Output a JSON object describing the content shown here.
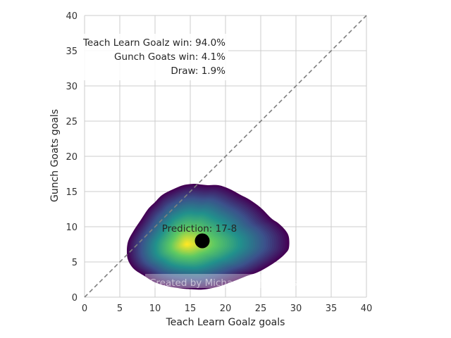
{
  "chart_data": {
    "type": "heatmap",
    "title": "",
    "xlabel": "Teach Learn Goalz goals",
    "ylabel": "Gunch Goats goals",
    "xlim": [
      0,
      40
    ],
    "ylim": [
      0,
      40
    ],
    "xticks": [
      0,
      5,
      10,
      15,
      20,
      25,
      30,
      35,
      40
    ],
    "yticks": [
      0,
      5,
      10,
      15,
      20,
      25,
      30,
      35,
      40
    ],
    "grid": true,
    "colormap": "viridis",
    "colors": {
      "grid": "#cccccc",
      "diagonal": "#7f7f7f",
      "point": "#000000",
      "viridis": [
        "#440154",
        "#3b528b",
        "#21918c",
        "#5ec962",
        "#fde725"
      ]
    },
    "density": {
      "peak": {
        "x": 14.5,
        "y": 7.5
      },
      "boundary": [
        [
          6.2,
          8.0
        ],
        [
          7.0,
          9.5
        ],
        [
          8.0,
          11.0
        ],
        [
          9.0,
          12.5
        ],
        [
          10.0,
          13.5
        ],
        [
          11.0,
          14.5
        ],
        [
          12.5,
          15.3
        ],
        [
          14.0,
          15.9
        ],
        [
          15.5,
          16.1
        ],
        [
          16.5,
          16.0
        ],
        [
          17.5,
          15.9
        ],
        [
          19.0,
          15.9
        ],
        [
          20.5,
          15.4
        ],
        [
          22.0,
          14.6
        ],
        [
          23.5,
          13.8
        ],
        [
          25.0,
          12.7
        ],
        [
          26.5,
          11.2
        ],
        [
          27.5,
          10.5
        ],
        [
          28.5,
          9.5
        ],
        [
          29.0,
          8.5
        ],
        [
          29.0,
          7.0
        ],
        [
          28.5,
          6.2
        ],
        [
          27.5,
          5.3
        ],
        [
          26.0,
          4.3
        ],
        [
          24.5,
          3.5
        ],
        [
          23.0,
          3.0
        ],
        [
          21.0,
          2.2
        ],
        [
          19.0,
          1.5
        ],
        [
          17.0,
          1.1
        ],
        [
          15.5,
          1.1
        ],
        [
          14.0,
          1.2
        ],
        [
          12.0,
          1.5
        ],
        [
          10.0,
          2.1
        ],
        [
          8.5,
          3.0
        ],
        [
          7.0,
          4.0
        ],
        [
          6.2,
          5.2
        ],
        [
          6.0,
          6.5
        ]
      ]
    },
    "prediction": {
      "x": 16.7,
      "y": 8.0,
      "label": "Prediction: 17-8"
    },
    "annotations": [
      "Teach Learn Goalz win: 94.0%",
      "Gunch Goats win: 4.1%",
      "Draw: 1.9%"
    ],
    "watermark": "Created by Michael Nefiodovas"
  }
}
